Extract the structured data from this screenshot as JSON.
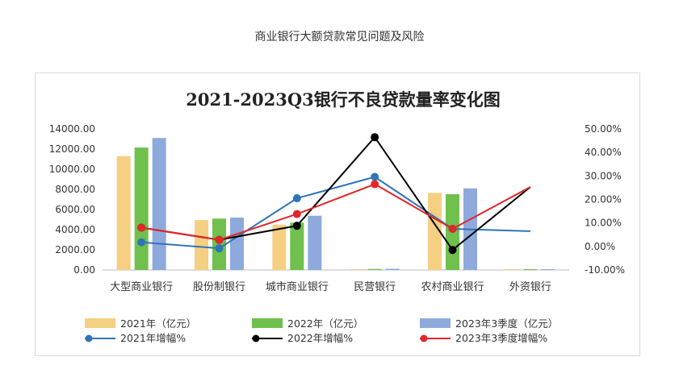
{
  "page": {
    "title": "商业银行大额贷款常见问题及风险"
  },
  "chart_data": {
    "type": "bar",
    "title": "2021-2023Q3银行不良贷款量率变化图",
    "categories": [
      "大型商业银行",
      "股份制银行",
      "城市商业银行",
      "民营银行",
      "农村商业银行",
      "外资银行"
    ],
    "y_left": {
      "range": [
        0,
        14000
      ],
      "ticks": [
        "0.00",
        "2000.00",
        "4000.00",
        "6000.00",
        "8000.00",
        "10000.00",
        "12000.00",
        "14000.00"
      ]
    },
    "y_right": {
      "range": [
        -10,
        50
      ],
      "ticks": [
        "-10.00%",
        "0.00%",
        "10.00%",
        "20.00%",
        "30.00%",
        "40.00%",
        "50.00%"
      ]
    },
    "series": [
      {
        "name": "2021年（亿元）",
        "kind": "bar",
        "axis": "left",
        "color": "#f5cf82",
        "values": [
          11300,
          4950,
          4500,
          60,
          7650,
          60
        ]
      },
      {
        "name": "2022年（亿元）",
        "kind": "bar",
        "axis": "left",
        "color": "#6fc04c",
        "values": [
          12150,
          5100,
          4700,
          100,
          7520,
          70
        ]
      },
      {
        "name": "2023年3季度（亿元）",
        "kind": "bar",
        "axis": "left",
        "color": "#8eaadc",
        "values": [
          13100,
          5200,
          5380,
          120,
          8100,
          80
        ]
      },
      {
        "name": "2021年增幅%",
        "kind": "line",
        "axis": "right",
        "color": "#2e75b6",
        "values": [
          1.8,
          -0.8,
          20.5,
          29.6,
          7.5,
          6.5
        ]
      },
      {
        "name": "2022年增幅%",
        "kind": "line",
        "axis": "right",
        "color": "#000000",
        "values": [
          8.0,
          2.8,
          8.8,
          46.5,
          -1.5,
          25.3
        ]
      },
      {
        "name": "2023年3季度增幅%",
        "kind": "line",
        "axis": "right",
        "color": "#e3262a",
        "values": [
          8.0,
          2.8,
          13.8,
          26.5,
          7.5,
          25.3
        ]
      }
    ],
    "legend": "bottom",
    "grid": false
  }
}
